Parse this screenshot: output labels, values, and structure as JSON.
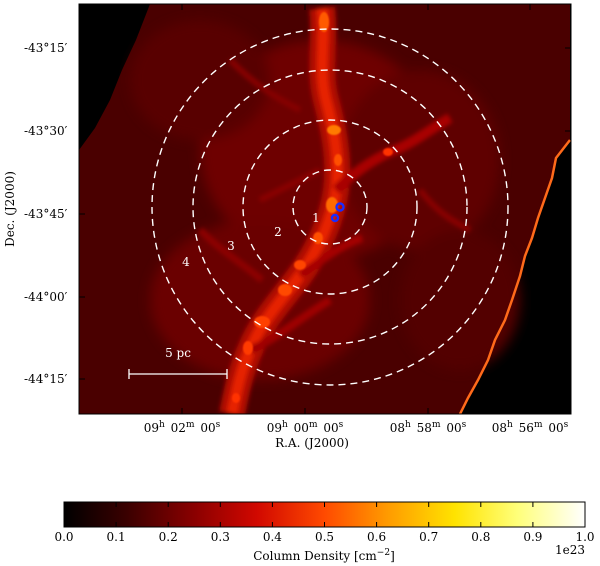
{
  "map": {
    "y_ticks": [
      "-43°15′",
      "-43°30′",
      "-43°45′",
      "-44°00′",
      "-44°15′"
    ],
    "x_ticks": [
      {
        "h": "09",
        "m": "02",
        "s": "00"
      },
      {
        "h": "09",
        "m": "00",
        "s": "00"
      },
      {
        "h": "08",
        "m": "58",
        "s": "00"
      },
      {
        "h": "08",
        "m": "56",
        "s": "00"
      }
    ],
    "xlabel": "R.A. (J2000)",
    "ylabel": "Dec. (J2000)",
    "ring_labels": [
      "1",
      "2",
      "3",
      "4"
    ],
    "scale_bar": "5 pc"
  },
  "colorbar": {
    "ticks": [
      "0.0",
      "0.1",
      "0.2",
      "0.3",
      "0.4",
      "0.5",
      "0.6",
      "0.7",
      "0.8",
      "0.9",
      "1.0"
    ],
    "label": "Column Density [cm",
    "label_sup": "−2",
    "label_end": "]",
    "multiplier": "1e23"
  },
  "colors": {
    "background": "#000000",
    "cmap": [
      "#000000",
      "#3a0000",
      "#8a0000",
      "#d10800",
      "#ff4a00",
      "#ff9a00",
      "#ffe300",
      "#ffff7a",
      "#ffffff"
    ],
    "ring": "#ffffff",
    "source": "#1a2cff"
  }
}
